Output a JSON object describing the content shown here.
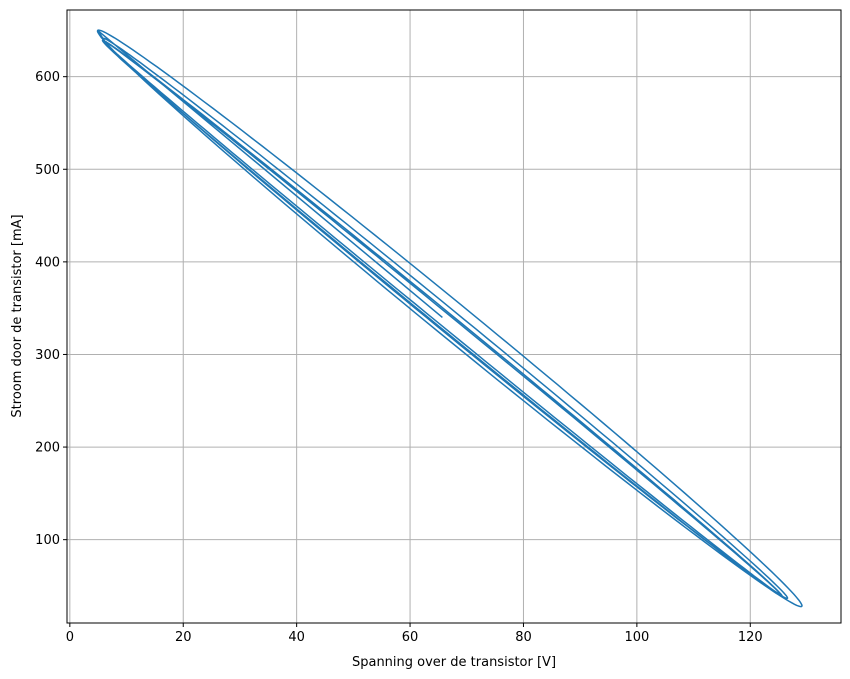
{
  "chart_data": {
    "type": "line",
    "title": "",
    "xlabel": "Spanning over de transistor [V]",
    "ylabel": "Stroom door de transistor [mA]",
    "xlim": [
      -0.5,
      136
    ],
    "ylim": [
      10,
      672
    ],
    "xticks": [
      0,
      20,
      40,
      60,
      80,
      100,
      120
    ],
    "yticks": [
      100,
      200,
      300,
      400,
      500,
      600
    ],
    "grid": true,
    "line_color": "#1f77b4",
    "series": [
      {
        "start": [
          65.7,
          340
        ],
        "loops": [
          {
            "center": [
              67.0,
              339.0
            ],
            "a": 72.0,
            "b": 5.5,
            "turns": 1.0
          },
          {
            "center": [
              66.2,
              339.0
            ],
            "a": 70.0,
            "b": 3.5,
            "turns": 1.0
          },
          {
            "center": [
              65.8,
              339.0
            ],
            "a": 69.0,
            "b": 2.0,
            "turns": 6.0
          },
          {
            "center": [
              65.7,
              339.0
            ],
            "a": 69.5,
            "b": 2.6,
            "turns": 3.0
          }
        ],
        "direction": [
          0.6593,
          -0.752
        ]
      }
    ]
  }
}
